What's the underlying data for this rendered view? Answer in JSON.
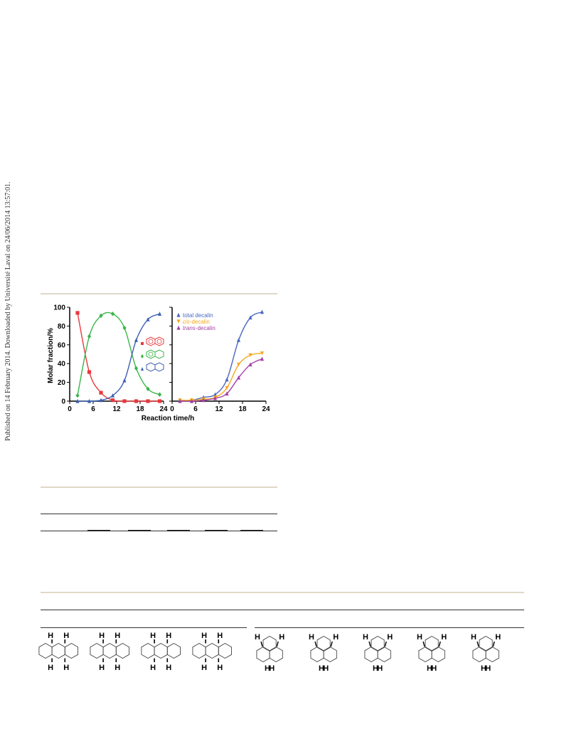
{
  "side_note": "Published on 14 February 2014. Downloaded by Université Laval on 24/06/2014 13:57:01.",
  "colors": {
    "naphthalene": "#e8383d",
    "tetralin": "#3ab54a",
    "decalin": "#3b5fb5",
    "total_decalin": "#4a67c0",
    "cis_decalin": "#f4a81d",
    "trans_decalin": "#a340a8"
  },
  "chart_data": [
    {
      "type": "line",
      "ylabel": "Molar fraction/%",
      "xlabel": "Reaction time/h",
      "xlim": [
        0,
        24
      ],
      "ylim": [
        0,
        100
      ],
      "xticks": [
        "0",
        "6",
        "12",
        "18",
        "24"
      ],
      "yticks": [
        "0",
        "20",
        "40",
        "60",
        "80",
        "100"
      ],
      "legend": "right, structure icons",
      "series": [
        {
          "key": "naphthalene",
          "marker": "square",
          "x": [
            2,
            5,
            8,
            11,
            14,
            17,
            20,
            23
          ],
          "y": [
            94,
            31,
            9,
            1,
            0,
            0,
            0,
            0
          ]
        },
        {
          "key": "tetralin",
          "marker": "diamond",
          "x": [
            2,
            5,
            8,
            11,
            14,
            17,
            20,
            23
          ],
          "y": [
            6,
            69,
            91,
            93,
            78,
            35,
            13,
            7
          ]
        },
        {
          "key": "decalin",
          "marker": "triangle",
          "x": [
            2,
            5,
            8,
            11,
            14,
            17,
            20,
            23
          ],
          "y": [
            0,
            0,
            1,
            6,
            22,
            65,
            87,
            93
          ]
        }
      ]
    },
    {
      "type": "line",
      "xlim": [
        0,
        24
      ],
      "ylim": [
        0,
        100
      ],
      "xticks": [
        "0",
        "6",
        "12",
        "18",
        "24"
      ],
      "legend": "top-left",
      "series": [
        {
          "name": "total decalin",
          "marker": "triangle",
          "x": [
            2,
            5,
            8,
            11,
            14,
            17,
            20,
            23
          ],
          "y": [
            1,
            1,
            4,
            7,
            23,
            65,
            89,
            95
          ]
        },
        {
          "name": "cis-decalin",
          "marker": "triangle-down",
          "x": [
            2,
            5,
            8,
            11,
            14,
            17,
            20,
            23
          ],
          "y": [
            1,
            1,
            2,
            4,
            14,
            39,
            49,
            51
          ]
        },
        {
          "name": "trans-decalin",
          "marker": "triangle",
          "x": [
            2,
            5,
            8,
            11,
            14,
            17,
            20,
            23
          ],
          "y": [
            0,
            0,
            1,
            3,
            8,
            25,
            39,
            45
          ]
        }
      ]
    }
  ],
  "structures": {
    "row": [
      {
        "top": [
          "H",
          "H"
        ],
        "bottom": [
          "H",
          "H"
        ]
      },
      {
        "top": [
          "H",
          "H"
        ],
        "bottom": [
          "H",
          "H"
        ]
      },
      {
        "top": [
          "H",
          "H"
        ],
        "bottom": [
          "H",
          "H"
        ]
      },
      {
        "top": [
          "H",
          "H"
        ],
        "bottom": [
          "H",
          "H"
        ]
      }
    ],
    "phen": [
      {
        "top": [
          "H",
          "H"
        ],
        "bottom": [
          "H",
          "H"
        ]
      },
      {
        "top": [
          "H",
          "H"
        ],
        "bottom": [
          "H",
          "H"
        ]
      },
      {
        "top": [
          "H",
          "H"
        ],
        "bottom": [
          "H",
          "H"
        ]
      },
      {
        "top": [
          "H",
          "H"
        ],
        "bottom": [
          "H",
          "H"
        ]
      },
      {
        "top": [
          "H",
          "H"
        ],
        "bottom": [
          "H",
          "H"
        ]
      }
    ]
  }
}
